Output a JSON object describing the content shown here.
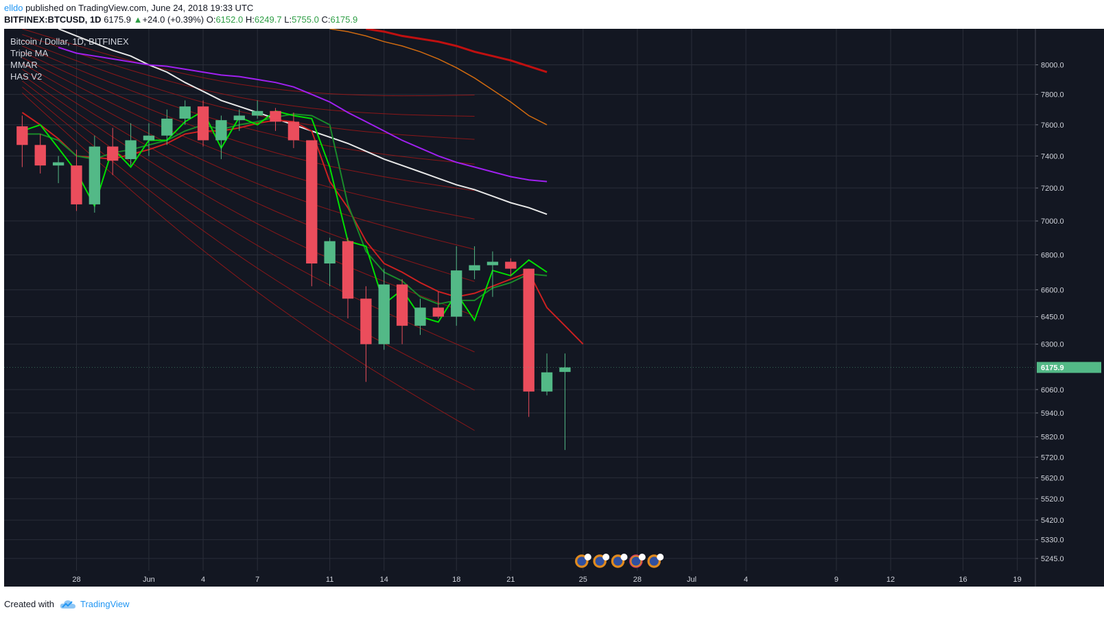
{
  "publish": {
    "author": "elldo",
    "text": " published on TradingView.com, June 24, 2018 19:33 UTC"
  },
  "symbol_bar": {
    "symbol": "BITFINEX:BTCUSD, 1D",
    "last": "6175.9",
    "change": "+24.0 (+0.39%)",
    "o_label": "O:",
    "o": "6152.0",
    "h_label": "H:",
    "h": "6249.7",
    "l_label": "L:",
    "l": "5755.0",
    "c_label": "C:",
    "c": "6175.9"
  },
  "legend": {
    "symbol": "Bitcoin / Dollar, 1D, BITFINEX",
    "indicators": [
      "Triple MA",
      "MMAR",
      "HAS V2"
    ]
  },
  "footer": {
    "created_with": "Created with",
    "brand": "TradingView"
  },
  "colors": {
    "background": "#131722",
    "grid": "#2a2e39",
    "up": "#53b987",
    "down": "#eb4d5c",
    "has_line": "#00e000",
    "price_badge": "#53b987"
  },
  "chart_data": {
    "type": "candlestick",
    "x_tick_labels": [
      "28",
      "Jun",
      "4",
      "7",
      "11",
      "14",
      "18",
      "21",
      "25",
      "28",
      "Jul",
      "4",
      "9",
      "12",
      "16",
      "19"
    ],
    "y_tick_labels": [
      "8000.0",
      "7800.0",
      "7600.0",
      "7400.0",
      "7200.0",
      "7000.0",
      "6800.0",
      "6600.0",
      "6450.0",
      "6300.0",
      "6060.0",
      "5940.0",
      "5820.0",
      "5720.0",
      "5620.0",
      "5520.0",
      "5420.0",
      "5330.0",
      "5245.0"
    ],
    "y_scale": "log",
    "ylim": [
      5190,
      8250
    ],
    "last_price_label": "6175.9",
    "candles": [
      {
        "date": "2018-05-25",
        "o": 7590,
        "h": 7660,
        "l": 7330,
        "c": 7470
      },
      {
        "date": "2018-05-26",
        "o": 7470,
        "h": 7540,
        "l": 7290,
        "c": 7340
      },
      {
        "date": "2018-05-27",
        "o": 7340,
        "h": 7400,
        "l": 7230,
        "c": 7360
      },
      {
        "date": "2018-05-28",
        "o": 7340,
        "h": 7440,
        "l": 7060,
        "c": 7100
      },
      {
        "date": "2018-05-29",
        "o": 7100,
        "h": 7530,
        "l": 7050,
        "c": 7460
      },
      {
        "date": "2018-05-30",
        "o": 7460,
        "h": 7580,
        "l": 7280,
        "c": 7370
      },
      {
        "date": "2018-05-31",
        "o": 7380,
        "h": 7610,
        "l": 7340,
        "c": 7500
      },
      {
        "date": "2018-06-01",
        "o": 7500,
        "h": 7610,
        "l": 7400,
        "c": 7530
      },
      {
        "date": "2018-06-02",
        "o": 7530,
        "h": 7700,
        "l": 7470,
        "c": 7640
      },
      {
        "date": "2018-06-03",
        "o": 7640,
        "h": 7760,
        "l": 7600,
        "c": 7720
      },
      {
        "date": "2018-06-04",
        "o": 7720,
        "h": 7760,
        "l": 7460,
        "c": 7500
      },
      {
        "date": "2018-06-05",
        "o": 7500,
        "h": 7660,
        "l": 7380,
        "c": 7630
      },
      {
        "date": "2018-06-06",
        "o": 7630,
        "h": 7700,
        "l": 7560,
        "c": 7660
      },
      {
        "date": "2018-06-07",
        "o": 7660,
        "h": 7760,
        "l": 7640,
        "c": 7690
      },
      {
        "date": "2018-06-08",
        "o": 7690,
        "h": 7710,
        "l": 7560,
        "c": 7620
      },
      {
        "date": "2018-06-09",
        "o": 7620,
        "h": 7680,
        "l": 7450,
        "c": 7500
      },
      {
        "date": "2018-06-10",
        "o": 7500,
        "h": 7500,
        "l": 6620,
        "c": 6750
      },
      {
        "date": "2018-06-11",
        "o": 6750,
        "h": 6900,
        "l": 6620,
        "c": 6880
      },
      {
        "date": "2018-06-12",
        "o": 6880,
        "h": 6900,
        "l": 6440,
        "c": 6550
      },
      {
        "date": "2018-06-13",
        "o": 6550,
        "h": 6620,
        "l": 6100,
        "c": 6300
      },
      {
        "date": "2018-06-14",
        "o": 6300,
        "h": 6720,
        "l": 6270,
        "c": 6630
      },
      {
        "date": "2018-06-15",
        "o": 6630,
        "h": 6660,
        "l": 6300,
        "c": 6400
      },
      {
        "date": "2018-06-16",
        "o": 6400,
        "h": 6550,
        "l": 6350,
        "c": 6500
      },
      {
        "date": "2018-06-17",
        "o": 6500,
        "h": 6590,
        "l": 6440,
        "c": 6450
      },
      {
        "date": "2018-06-18",
        "o": 6450,
        "h": 6850,
        "l": 6400,
        "c": 6710
      },
      {
        "date": "2018-06-19",
        "o": 6710,
        "h": 6850,
        "l": 6660,
        "c": 6740
      },
      {
        "date": "2018-06-20",
        "o": 6740,
        "h": 6820,
        "l": 6560,
        "c": 6760
      },
      {
        "date": "2018-06-21",
        "o": 6760,
        "h": 6780,
        "l": 6680,
        "c": 6720
      },
      {
        "date": "2018-06-22",
        "o": 6720,
        "h": 6720,
        "l": 5920,
        "c": 6050
      },
      {
        "date": "2018-06-23",
        "o": 6050,
        "h": 6250,
        "l": 6030,
        "c": 6150
      },
      {
        "date": "2018-06-24",
        "o": 6152.0,
        "h": 6249.7,
        "l": 5755.0,
        "c": 6175.9
      }
    ],
    "x_ticks": [
      {
        "label": "28",
        "date": "2018-05-28"
      },
      {
        "label": "Jun",
        "date": "2018-06-01"
      },
      {
        "label": "4",
        "date": "2018-06-04"
      },
      {
        "label": "7",
        "date": "2018-06-07"
      },
      {
        "label": "11",
        "date": "2018-06-11"
      },
      {
        "label": "14",
        "date": "2018-06-14"
      },
      {
        "label": "18",
        "date": "2018-06-18"
      },
      {
        "label": "21",
        "date": "2018-06-21"
      },
      {
        "label": "25",
        "date": "2018-06-25"
      },
      {
        "label": "28",
        "date": "2018-06-28"
      },
      {
        "label": "Jul",
        "date": "2018-07-01"
      },
      {
        "label": "4",
        "date": "2018-07-04"
      },
      {
        "label": "9",
        "date": "2018-07-09"
      },
      {
        "label": "12",
        "date": "2018-07-12"
      },
      {
        "label": "16",
        "date": "2018-07-16"
      },
      {
        "label": "19",
        "date": "2018-07-19"
      }
    ],
    "x_range": [
      "2018-05-24",
      "2018-07-20"
    ],
    "y_ticks": [
      8000,
      7800,
      7600,
      7400,
      7200,
      7000,
      6800,
      6600,
      6450,
      6300,
      6060,
      5940,
      5820,
      5720,
      5620,
      5520,
      5420,
      5330,
      5245
    ],
    "lines": {
      "has": {
        "color": "#00e000",
        "values": [
          7560,
          7600,
          7450,
          7300,
          7090,
          7450,
          7330,
          7500,
          7500,
          7620,
          7690,
          7450,
          7650,
          7600,
          7690,
          7660,
          7640,
          7330,
          6880,
          6850,
          6520,
          6600,
          6450,
          6420,
          6580,
          6430,
          6710,
          6680,
          6770,
          6700
        ]
      },
      "has_smooth": {
        "color": "#1a8a2a",
        "values": [
          7540,
          7540,
          7500,
          7400,
          7380,
          7420,
          7440,
          7470,
          7500,
          7560,
          7600,
          7570,
          7600,
          7620,
          7650,
          7670,
          7660,
          7600,
          7100,
          6820,
          6700,
          6650,
          6560,
          6520,
          6540,
          6540,
          6610,
          6640,
          6690,
          6680
        ]
      },
      "ema_fast": {
        "color": "#cc2020",
        "values": [
          7680,
          7600,
          7510,
          7400,
          7390,
          7380,
          7410,
          7440,
          7480,
          7540,
          7560,
          7560,
          7580,
          7610,
          7630,
          7620,
          7560,
          7240,
          7080,
          6880,
          6750,
          6700,
          6640,
          6590,
          6560,
          6580,
          6620,
          6660,
          6700,
          6500,
          6400,
          6300
        ]
      },
      "white": {
        "color": "#e8e8e8",
        "values": [
          8250,
          8200,
          8150,
          8100,
          8060,
          8000,
          7950,
          7880,
          7820,
          7760,
          7720,
          7680,
          7640,
          7600,
          7560,
          7520,
          7480,
          7430,
          7380,
          7340,
          7300,
          7260,
          7220,
          7190,
          7150,
          7110,
          7080,
          7040
        ]
      },
      "violet": {
        "color": "#a020f0",
        "values": [
          8120,
          8080,
          8060,
          8040,
          8020,
          8000,
          7990,
          7970,
          7950,
          7930,
          7920,
          7900,
          7880,
          7850,
          7800,
          7750,
          7680,
          7620,
          7560,
          7500,
          7450,
          7400,
          7360,
          7330,
          7300,
          7270,
          7250,
          7240
        ]
      },
      "orange": {
        "color": "#d06a10",
        "values": [
          8250,
          8230,
          8200,
          8160,
          8130,
          8090,
          8040,
          7980,
          7910,
          7830,
          7750,
          7660,
          7600
        ]
      },
      "red_thick": {
        "color": "#c01010",
        "values": [
          8250,
          8230,
          8200,
          8180,
          8160,
          8130,
          8090,
          8060,
          8030,
          7990,
          7950
        ]
      }
    }
  }
}
